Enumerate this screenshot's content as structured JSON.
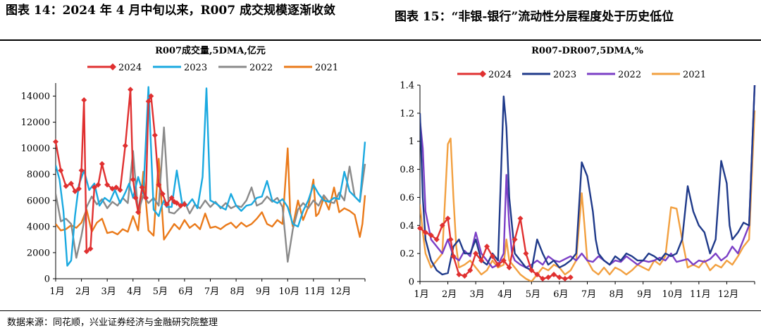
{
  "figure_titles": {
    "left": "图表 14：2024 年 4 月中旬以来，R007 成交规模逐渐收敛",
    "right": "图表 15：“非银-银行”流动性分层程度处于历史低位"
  },
  "source": "数据来源：同花顺，兴业证券经济与金融研究院整理",
  "chart_data": [
    {
      "type": "line",
      "title": "R007成交量,5DMA,亿元",
      "x_ticks": [
        "1月",
        "2月",
        "3月",
        "4月",
        "5月",
        "6月",
        "7月",
        "8月",
        "9月",
        "10月",
        "11月",
        "12月"
      ],
      "xlim": [
        0,
        12
      ],
      "ylim": [
        0,
        15000
      ],
      "y_ticks": [
        "0",
        "2000",
        "4000",
        "6000",
        "8000",
        "10000",
        "12000",
        "14000"
      ],
      "y_tick_values": [
        0,
        2000,
        4000,
        6000,
        8000,
        10000,
        12000,
        14000
      ],
      "legend": "top",
      "series": [
        {
          "name": "2024",
          "color": "#e03030",
          "marker": "diamond",
          "width": 2.4,
          "x": [
            0.0,
            0.2,
            0.4,
            0.6,
            0.75,
            0.9,
            1.0,
            1.1,
            1.2,
            1.35,
            1.5,
            1.65,
            1.8,
            2.0,
            2.2,
            2.35,
            2.5,
            2.7,
            2.9,
            3.0,
            3.1,
            3.2,
            3.35,
            3.5,
            3.6,
            3.7,
            3.85,
            4.0,
            4.15,
            4.3,
            4.5,
            4.6,
            4.7,
            4.85,
            5.0
          ],
          "y": [
            10500,
            8300,
            7100,
            7300,
            6700,
            6900,
            8300,
            13700,
            2100,
            2300,
            7000,
            7200,
            8800,
            7200,
            6900,
            7000,
            6800,
            10200,
            14500,
            7600,
            6200,
            5100,
            7000,
            6200,
            13600,
            14000,
            11000,
            7200,
            6500,
            5700,
            6200,
            5900,
            5800,
            5600,
            5700
          ]
        },
        {
          "name": "2023",
          "color": "#1aa9e0",
          "width": 2.4,
          "x": [
            0.0,
            0.15,
            0.3,
            0.45,
            0.6,
            0.75,
            0.9,
            1.1,
            1.3,
            1.5,
            1.7,
            1.9,
            2.1,
            2.3,
            2.5,
            2.7,
            2.85,
            3.0,
            3.2,
            3.4,
            3.6,
            3.8,
            4.0,
            4.1,
            4.2,
            4.3,
            4.5,
            4.7,
            4.9,
            5.1,
            5.3,
            5.5,
            5.7,
            5.85,
            6.0,
            6.2,
            6.4,
            6.6,
            6.8,
            7.0,
            7.2,
            7.4,
            7.6,
            7.8,
            8.0,
            8.2,
            8.4,
            8.6,
            8.8,
            9.0,
            9.2,
            9.4,
            9.6,
            9.8,
            10.0,
            10.2,
            10.4,
            10.6,
            10.8,
            11.0,
            11.2,
            11.4,
            11.6,
            11.8,
            12.0
          ],
          "y": [
            8700,
            7600,
            5200,
            1000,
            1400,
            4800,
            7200,
            8300,
            6800,
            7300,
            5600,
            6200,
            5900,
            6800,
            5800,
            6600,
            7300,
            6200,
            7800,
            6500,
            14700,
            5300,
            4800,
            5500,
            6000,
            5500,
            5500,
            8300,
            5800,
            5600,
            6100,
            5400,
            7800,
            14600,
            6000,
            5800,
            5500,
            5300,
            6500,
            5600,
            5200,
            5600,
            5700,
            6200,
            6300,
            7500,
            6000,
            5800,
            6100,
            5500,
            4200,
            4000,
            5200,
            6000,
            7200,
            6500,
            6000,
            5900,
            6200,
            6100,
            8200,
            6700,
            6300,
            5900,
            10500
          ]
        },
        {
          "name": "2022",
          "color": "#8a8a8a",
          "width": 2.4,
          "x": [
            0.0,
            0.2,
            0.4,
            0.6,
            0.8,
            1.0,
            1.2,
            1.4,
            1.6,
            1.8,
            2.0,
            2.2,
            2.4,
            2.6,
            2.8,
            3.0,
            3.1,
            3.2,
            3.4,
            3.6,
            3.8,
            4.0,
            4.2,
            4.4,
            4.6,
            4.8,
            5.0,
            5.2,
            5.4,
            5.6,
            5.8,
            6.0,
            6.2,
            6.4,
            6.6,
            6.8,
            7.0,
            7.2,
            7.4,
            7.6,
            7.8,
            8.0,
            8.2,
            8.4,
            8.6,
            8.8,
            9.0,
            9.2,
            9.4,
            9.6,
            9.8,
            10.0,
            10.2,
            10.4,
            10.6,
            10.8,
            11.0,
            11.2,
            11.4,
            11.6,
            11.8,
            12.0
          ],
          "y": [
            6500,
            4400,
            4600,
            4200,
            1600,
            3300,
            5500,
            6300,
            5700,
            6100,
            5400,
            5900,
            5600,
            6200,
            5800,
            9800,
            7400,
            5100,
            6400,
            5800,
            6200,
            5600,
            11600,
            5100,
            5000,
            5400,
            5900,
            5000,
            5700,
            5400,
            6000,
            5500,
            5900,
            5400,
            5800,
            5400,
            5600,
            5500,
            6000,
            7000,
            5600,
            5800,
            6300,
            5900,
            6200,
            5500,
            1300,
            3800,
            5300,
            5800,
            5400,
            6000,
            5600,
            6400,
            5900,
            5800,
            6600,
            6000,
            8600,
            6300,
            5900,
            8800
          ]
        },
        {
          "name": "2021",
          "color": "#ea7a1a",
          "width": 2.4,
          "x": [
            0.0,
            0.2,
            0.4,
            0.6,
            0.8,
            1.0,
            1.2,
            1.4,
            1.6,
            1.8,
            2.0,
            2.2,
            2.4,
            2.6,
            2.8,
            3.0,
            3.2,
            3.4,
            3.6,
            3.8,
            4.0,
            4.2,
            4.4,
            4.6,
            4.8,
            5.0,
            5.2,
            5.4,
            5.6,
            5.8,
            6.0,
            6.2,
            6.4,
            6.6,
            6.8,
            7.0,
            7.2,
            7.4,
            7.6,
            7.8,
            8.0,
            8.2,
            8.4,
            8.6,
            8.8,
            9.0,
            9.1,
            9.2,
            9.4,
            9.6,
            9.8,
            10.0,
            10.1,
            10.2,
            10.4,
            10.6,
            10.8,
            11.0,
            11.2,
            11.4,
            11.6,
            11.8,
            11.9,
            12.0
          ],
          "y": [
            4200,
            3700,
            3800,
            4100,
            3900,
            4300,
            5300,
            3600,
            4300,
            4600,
            3500,
            3600,
            3400,
            3800,
            3600,
            4800,
            3700,
            8200,
            3700,
            3300,
            9200,
            3000,
            3600,
            4200,
            3800,
            4500,
            3900,
            4200,
            3800,
            5000,
            3900,
            4000,
            3800,
            4100,
            4300,
            3900,
            4300,
            4000,
            4200,
            4600,
            5100,
            4200,
            4000,
            4500,
            4200,
            10000,
            5000,
            4000,
            6000,
            4500,
            5500,
            7600,
            4800,
            5000,
            6200,
            5300,
            7000,
            5100,
            5400,
            5200,
            4900,
            3200,
            4200,
            6400
          ]
        }
      ]
    },
    {
      "type": "line",
      "title": "R007-DR007,5DMA,%",
      "x_ticks": [
        "1月",
        "2月",
        "3月",
        "4月",
        "5月",
        "6月",
        "7月",
        "8月",
        "9月",
        "10月",
        "11月",
        "12月"
      ],
      "xlim": [
        0,
        12
      ],
      "ylim": [
        0,
        1.4
      ],
      "y_ticks": [
        "0",
        "0.2",
        "0.4",
        "0.6",
        "0.8",
        "1",
        "1.2",
        "1.4"
      ],
      "y_tick_values": [
        0,
        0.2,
        0.4,
        0.6,
        0.8,
        1.0,
        1.2,
        1.4
      ],
      "legend": "top",
      "series": [
        {
          "name": "2024",
          "color": "#e03030",
          "marker": "diamond",
          "width": 2.4,
          "x": [
            0.0,
            0.2,
            0.4,
            0.6,
            0.8,
            1.0,
            1.1,
            1.2,
            1.4,
            1.6,
            1.8,
            2.0,
            2.2,
            2.4,
            2.6,
            2.8,
            3.0,
            3.2,
            3.4,
            3.6,
            3.8,
            4.0,
            4.2,
            4.4,
            4.6,
            4.8,
            5.0,
            5.2,
            5.4
          ],
          "y": [
            0.38,
            0.35,
            0.33,
            0.3,
            0.4,
            0.45,
            0.3,
            0.18,
            0.05,
            0.04,
            0.08,
            0.2,
            0.15,
            0.25,
            0.18,
            0.12,
            0.15,
            0.1,
            0.3,
            0.45,
            0.2,
            0.08,
            0.05,
            0.02,
            0.03,
            0.05,
            0.03,
            0.02,
            0.03
          ]
        },
        {
          "name": "2023",
          "color": "#1f3a8a",
          "width": 2.4,
          "x": [
            0.0,
            0.1,
            0.2,
            0.4,
            0.6,
            0.8,
            1.0,
            1.2,
            1.4,
            1.6,
            1.8,
            2.0,
            2.2,
            2.4,
            2.6,
            2.8,
            3.0,
            3.1,
            3.2,
            3.3,
            3.4,
            3.6,
            3.8,
            4.0,
            4.2,
            4.4,
            4.6,
            4.8,
            5.0,
            5.2,
            5.4,
            5.6,
            5.8,
            6.0,
            6.2,
            6.3,
            6.4,
            6.6,
            6.8,
            7.0,
            7.2,
            7.4,
            7.6,
            7.8,
            8.0,
            8.2,
            8.4,
            8.6,
            8.8,
            9.0,
            9.2,
            9.4,
            9.6,
            9.8,
            10.0,
            10.2,
            10.4,
            10.6,
            10.8,
            11.0,
            11.1,
            11.2,
            11.4,
            11.6,
            11.8,
            12.0
          ],
          "y": [
            1.2,
            0.6,
            0.3,
            0.15,
            0.08,
            0.05,
            0.06,
            0.25,
            0.3,
            0.2,
            0.2,
            0.3,
            0.15,
            0.12,
            0.2,
            0.15,
            1.32,
            1.1,
            0.6,
            0.4,
            0.2,
            0.15,
            0.1,
            0.08,
            0.3,
            0.2,
            0.12,
            0.15,
            0.1,
            0.12,
            0.15,
            0.2,
            0.85,
            0.75,
            0.5,
            0.3,
            0.2,
            0.15,
            0.12,
            0.18,
            0.15,
            0.2,
            0.18,
            0.15,
            0.15,
            0.2,
            0.18,
            0.15,
            0.2,
            0.18,
            0.2,
            0.3,
            0.68,
            0.5,
            0.4,
            0.35,
            0.2,
            0.3,
            0.86,
            0.7,
            0.4,
            0.3,
            0.35,
            0.42,
            0.4,
            1.4
          ]
        },
        {
          "name": "2022",
          "color": "#7b3fc6",
          "width": 2.4,
          "x": [
            0.0,
            0.1,
            0.2,
            0.4,
            0.6,
            0.8,
            1.0,
            1.2,
            1.4,
            1.6,
            1.8,
            2.0,
            2.2,
            2.4,
            2.6,
            2.8,
            3.0,
            3.1,
            3.2,
            3.3,
            3.4,
            3.6,
            3.8,
            4.0,
            4.2,
            4.4,
            4.6,
            4.8,
            5.0,
            5.2,
            5.4,
            5.6,
            5.8,
            6.0,
            6.2,
            6.4,
            6.6,
            6.8,
            7.0,
            7.2,
            7.4,
            7.6,
            7.8,
            8.0,
            8.2,
            8.4,
            8.6,
            8.8,
            9.0,
            9.2,
            9.4,
            9.6,
            9.8,
            10.0,
            10.2,
            10.4,
            10.6,
            10.8,
            11.0,
            11.2,
            11.4,
            11.6,
            11.8,
            12.0
          ],
          "y": [
            1.15,
            0.95,
            0.5,
            0.3,
            0.25,
            0.2,
            0.3,
            0.18,
            0.15,
            0.22,
            0.18,
            0.35,
            0.2,
            0.15,
            0.1,
            0.12,
            0.2,
            0.76,
            0.4,
            0.2,
            0.15,
            0.12,
            0.1,
            0.12,
            0.15,
            0.12,
            0.18,
            0.15,
            0.14,
            0.16,
            0.18,
            0.15,
            0.2,
            0.15,
            0.14,
            0.18,
            0.15,
            0.12,
            0.15,
            0.14,
            0.18,
            0.15,
            0.12,
            0.15,
            0.14,
            0.15,
            0.17,
            0.15,
            0.2,
            0.14,
            0.15,
            0.16,
            0.12,
            0.15,
            0.14,
            0.16,
            0.2,
            0.15,
            0.18,
            0.25,
            0.2,
            0.3,
            0.4,
            1.4
          ]
        },
        {
          "name": "2021",
          "color": "#f2a040",
          "width": 2.4,
          "x": [
            0.0,
            0.1,
            0.2,
            0.4,
            0.6,
            0.8,
            1.0,
            1.1,
            1.2,
            1.3,
            1.4,
            1.6,
            1.8,
            2.0,
            2.2,
            2.4,
            2.6,
            2.8,
            3.0,
            3.1,
            3.2,
            3.4,
            3.6,
            3.8,
            4.0,
            4.2,
            4.4,
            4.6,
            4.8,
            5.0,
            5.2,
            5.4,
            5.6,
            5.8,
            5.9,
            6.0,
            6.2,
            6.4,
            6.6,
            6.8,
            7.0,
            7.2,
            7.4,
            7.6,
            7.8,
            8.0,
            8.2,
            8.4,
            8.6,
            8.8,
            9.0,
            9.2,
            9.4,
            9.6,
            9.8,
            10.0,
            10.2,
            10.4,
            10.6,
            10.8,
            11.0,
            11.2,
            11.4,
            11.6,
            11.8,
            12.0
          ],
          "y": [
            0.55,
            0.35,
            0.2,
            0.1,
            0.15,
            0.2,
            0.98,
            1.02,
            0.6,
            0.25,
            0.1,
            0.12,
            0.15,
            0.1,
            0.05,
            0.08,
            0.15,
            0.1,
            0.12,
            0.3,
            0.15,
            0.1,
            0.05,
            0.02,
            0.0,
            0.05,
            0.1,
            0.08,
            0.12,
            0.1,
            0.05,
            0.08,
            0.15,
            0.63,
            0.4,
            0.15,
            0.08,
            0.05,
            0.1,
            0.05,
            0.1,
            0.08,
            0.05,
            0.08,
            0.12,
            0.1,
            0.08,
            0.15,
            0.12,
            0.18,
            0.53,
            0.52,
            0.3,
            0.1,
            0.12,
            0.1,
            0.15,
            0.08,
            0.12,
            0.1,
            0.15,
            0.12,
            0.18,
            0.25,
            0.3,
            1.22
          ]
        }
      ]
    }
  ]
}
